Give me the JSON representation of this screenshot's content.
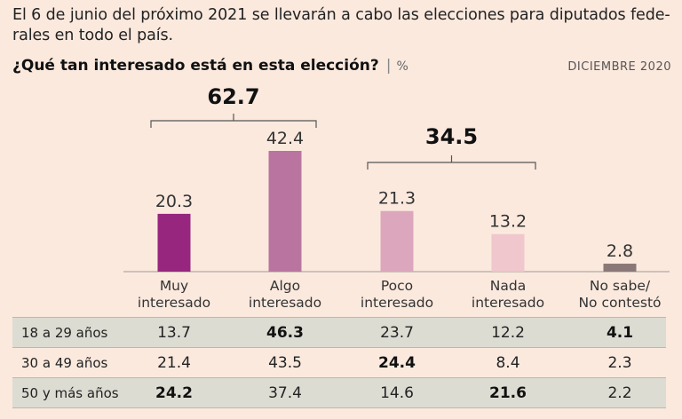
{
  "intro_text": "El 6 de junio del próximo 2021 se llevarán a cabo las elecciones para diputados fede-rales en todo el país.",
  "question": "¿Qué tan interesado está en esta elección?",
  "separator": "|",
  "unit": "%",
  "date": "DICIEMBRE 2020",
  "chart_data": {
    "type": "bar",
    "categories": [
      [
        "Muy",
        "interesado"
      ],
      [
        "Algo",
        "interesado"
      ],
      [
        "Poco",
        "interesado"
      ],
      [
        "Nada",
        "interesado"
      ],
      [
        "No sabe/",
        "No contestó"
      ]
    ],
    "values": [
      20.3,
      42.4,
      21.3,
      13.2,
      2.8
    ],
    "value_labels": [
      "20.3",
      "42.4",
      "21.3",
      "13.2",
      "2.8"
    ],
    "colors": [
      "#97267f",
      "#b9759f",
      "#dca7bc",
      "#efc7cc",
      "#8a7878"
    ],
    "ylim": [
      0,
      45
    ],
    "groups": [
      {
        "label": "62.7",
        "from": 0,
        "to": 1
      },
      {
        "label": "34.5",
        "from": 2,
        "to": 3
      }
    ],
    "table": {
      "rows": [
        {
          "label": "18 a 29 años",
          "values": [
            "13.7",
            "46.3",
            "23.7",
            "12.2",
            "4.1"
          ],
          "bold": [
            false,
            true,
            false,
            false,
            true
          ],
          "shaded": true
        },
        {
          "label": "30 a 49 años",
          "values": [
            "21.4",
            "43.5",
            "24.4",
            "8.4",
            "2.3"
          ],
          "bold": [
            false,
            false,
            true,
            false,
            false
          ],
          "shaded": false
        },
        {
          "label": "50 y más años",
          "values": [
            "24.2",
            "37.4",
            "14.6",
            "21.6",
            "2.2"
          ],
          "bold": [
            true,
            false,
            false,
            true,
            false
          ],
          "shaded": true
        }
      ]
    }
  }
}
